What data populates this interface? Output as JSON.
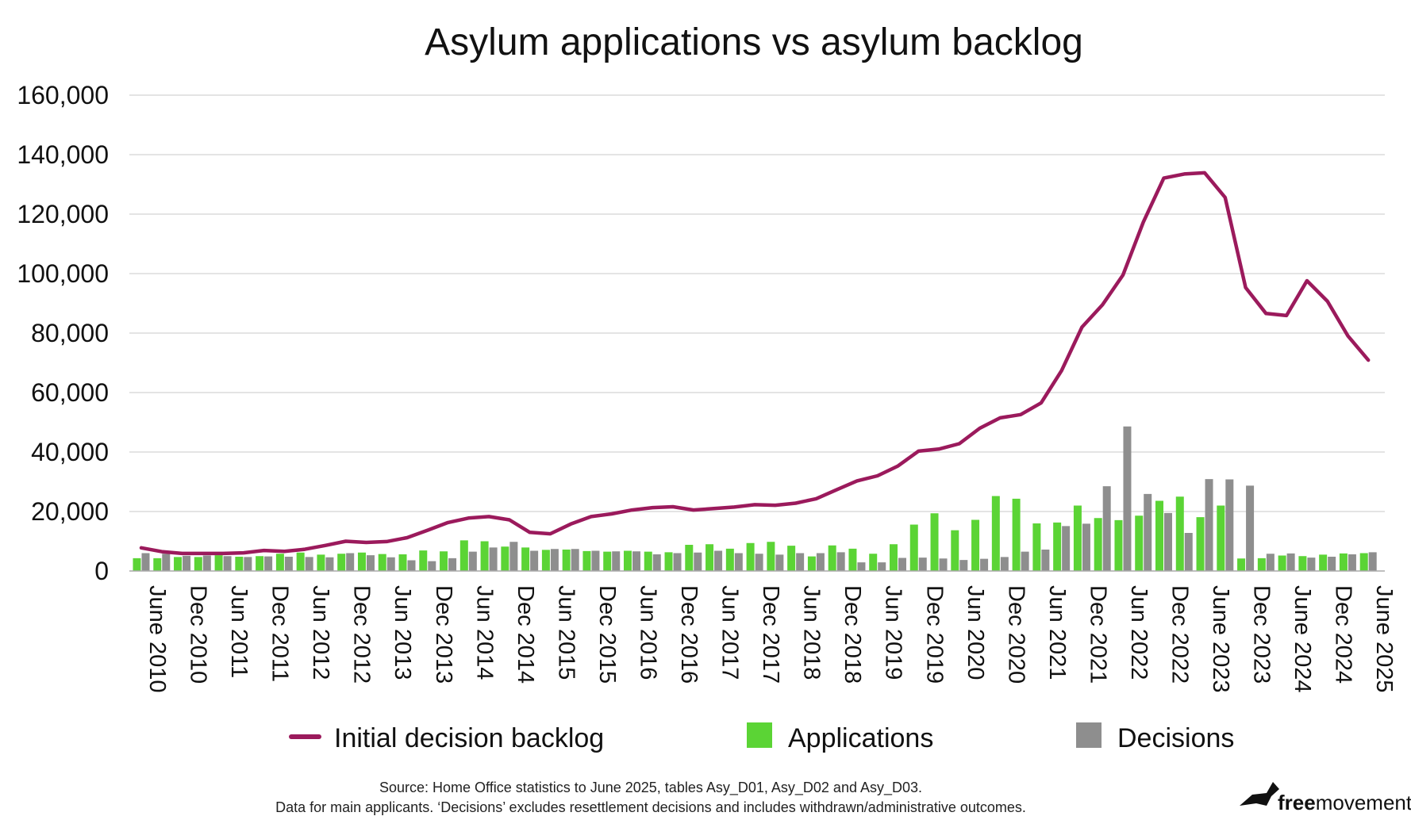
{
  "chart_data": {
    "type": "bar+line",
    "title": "Asylum applications vs asylum backlog",
    "ylim": [
      0,
      160000
    ],
    "yticks": [
      0,
      20000,
      40000,
      60000,
      80000,
      100000,
      120000,
      140000,
      160000
    ],
    "ytick_labels": [
      "0",
      "20,000",
      "40,000",
      "60,000",
      "80,000",
      "100,000",
      "120,000",
      "140,000",
      "160,000"
    ],
    "xtick_labels": [
      "June 2010",
      "Dec 2010",
      "Jun 2011",
      "Dec 2011",
      "Jun 2012",
      "Dec 2012",
      "Jun 2013",
      "Dec 2013",
      "Jun 2014",
      "Dec 2014",
      "Jun 2015",
      "Dec 2015",
      "Jun 2016",
      "Dec 2016",
      "Jun 2017",
      "Dec 2017",
      "Jun 2018",
      "Dec 2018",
      "Jun 2019",
      "Dec 2019",
      "Jun 2020",
      "Dec 2020",
      "Jun 2021",
      "Dec 2021",
      "Jun 2022",
      "Dec 2022",
      "June 2023",
      "Dec 2023",
      "June 2024",
      "Dec 2024",
      "June 2025"
    ],
    "grid": true,
    "legend_position": "bottom",
    "series": [
      {
        "name": "Initial decision backlog",
        "type": "line",
        "color": "#9b1a5c",
        "values": [
          7800,
          6500,
          5900,
          5900,
          5900,
          6100,
          6900,
          6600,
          7300,
          8600,
          10000,
          9600,
          9900,
          11200,
          13700,
          16300,
          17800,
          18300,
          17200,
          13000,
          12500,
          15800,
          18300,
          19200,
          20500,
          21300,
          21600,
          20500,
          21000,
          21500,
          22300,
          22100,
          22800,
          24300,
          27300,
          30300,
          32000,
          35300,
          40300,
          41000,
          42800,
          48000,
          51500,
          52600,
          56500,
          67400,
          82000,
          89500,
          99500,
          117300,
          132100,
          133500,
          133900,
          125600,
          95300,
          86600,
          85900,
          97600,
          90700,
          79100,
          70900
        ]
      },
      {
        "name": "Applications",
        "type": "bar",
        "color": "#5bd435",
        "values": [
          4300,
          4300,
          4700,
          4700,
          5300,
          4800,
          5000,
          5800,
          6200,
          5500,
          5800,
          6200,
          5700,
          5600,
          6900,
          6600,
          10300,
          10000,
          8200,
          7900,
          7100,
          7200,
          6700,
          6500,
          6800,
          6500,
          6300,
          8800,
          9000,
          7500,
          9400,
          9800,
          8500,
          4900,
          8600,
          7500,
          5800,
          9000,
          15600,
          19400,
          13700,
          17200,
          25200,
          24300,
          16000,
          16300,
          22000,
          17800,
          17100,
          18600,
          23600,
          25000,
          18100,
          22000,
          4200,
          4300,
          5200,
          5000,
          5500,
          5900,
          6000
        ]
      },
      {
        "name": "Decisions",
        "type": "bar",
        "color": "#8e8e8e",
        "values": [
          6000,
          5800,
          5100,
          5200,
          5000,
          4700,
          4900,
          4800,
          4700,
          4600,
          6000,
          5300,
          4600,
          3600,
          3300,
          4300,
          6500,
          7900,
          9800,
          6800,
          7400,
          7400,
          6800,
          6600,
          6600,
          5600,
          6000,
          6200,
          6800,
          6000,
          5800,
          5500,
          6000,
          6000,
          6300,
          2900,
          2900,
          4400,
          4500,
          4200,
          3700,
          4100,
          4700,
          6500,
          7200,
          15100,
          15900,
          28500,
          48600,
          25900,
          19500,
          12800,
          30900,
          30800,
          28700,
          5800,
          5900,
          4500,
          4800,
          5600,
          6300
        ]
      }
    ]
  },
  "legend": {
    "backlog": "Initial decision backlog",
    "applications": "Applications",
    "decisions": "Decisions"
  },
  "source": {
    "line1": "Source: Home Office statistics to June 2025, tables Asy_D01, Asy_D02 and Asy_D03.",
    "line2": "Data for main applicants. ‘Decisions’ excludes resettlement decisions and includes withdrawn/administrative outcomes."
  },
  "brand": {
    "bold": "free",
    "light": "movement",
    "icon": "bird-logo-icon"
  }
}
